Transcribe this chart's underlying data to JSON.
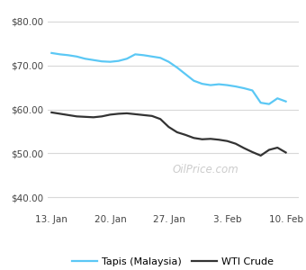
{
  "tapis": [
    72.8,
    72.5,
    72.3,
    72.0,
    71.5,
    71.2,
    70.9,
    70.8,
    71.0,
    71.5,
    72.5,
    72.3,
    72.0,
    71.7,
    70.8,
    69.5,
    68.0,
    66.5,
    65.8,
    65.5,
    65.7,
    65.5,
    65.2,
    64.8,
    64.3,
    61.5,
    61.2,
    62.5,
    61.8
  ],
  "wti": [
    59.3,
    59.0,
    58.7,
    58.4,
    58.3,
    58.2,
    58.4,
    58.8,
    59.0,
    59.1,
    58.9,
    58.7,
    58.5,
    57.8,
    56.0,
    54.8,
    54.2,
    53.5,
    53.2,
    53.3,
    53.1,
    52.8,
    52.2,
    51.2,
    50.3,
    49.5,
    50.8,
    51.3,
    50.2
  ],
  "x_tick_positions": [
    0,
    7,
    14,
    21,
    28
  ],
  "x_tick_labels": [
    "13. Jan",
    "20. Jan",
    "27. Jan",
    "3. Feb",
    "10. Feb"
  ],
  "yticks": [
    40.0,
    50.0,
    60.0,
    70.0,
    80.0
  ],
  "ylim": [
    37,
    83
  ],
  "xlim": [
    -0.5,
    29.5
  ],
  "tapis_color": "#5bc8f5",
  "wti_color": "#333333",
  "background_color": "#ffffff",
  "grid_color": "#d8d8d8",
  "watermark": "OilPrice.com",
  "watermark_color": "#cccccc",
  "legend_tapis": "Tapis (Malaysia)",
  "legend_wti": "WTI Crude",
  "linewidth": 1.6
}
